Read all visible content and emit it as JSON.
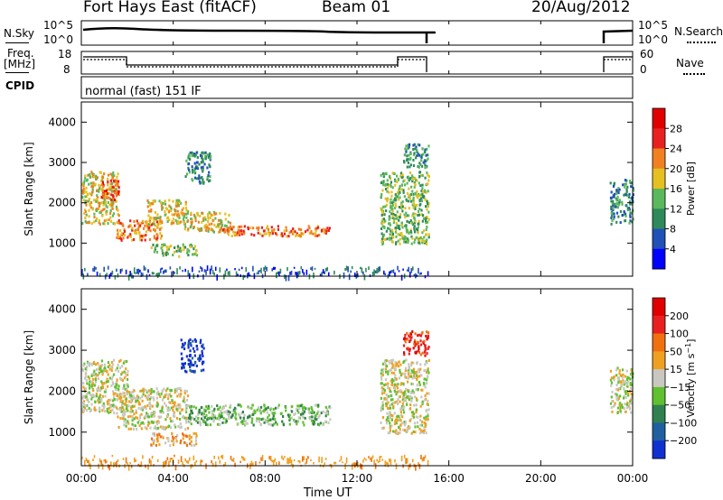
{
  "header": {
    "station": "Fort Hays East (fitACF)",
    "beam": "Beam 01",
    "date": "20/Aug/2012"
  },
  "noise_panel": {
    "left_label": "N.Sky",
    "right_label": "N.Search",
    "left_ticks": [
      "10^5",
      "10^0"
    ],
    "right_ticks": [
      "10^5",
      "10^0"
    ]
  },
  "freq_panel": {
    "left_label_1": "Freq.",
    "left_label_2": "[MHz]",
    "right_label": "Nave",
    "left_ticks": [
      "18",
      "8"
    ],
    "right_ticks": [
      "60",
      "0"
    ]
  },
  "cpid_panel": {
    "label": "CPID",
    "program": "normal (fast) 151 IF"
  },
  "x_axis": {
    "label": "Time UT",
    "ticks": [
      "00:00",
      "04:00",
      "08:00",
      "12:00",
      "16:00",
      "20:00",
      "00:00"
    ]
  },
  "chart_data": [
    {
      "type": "heatmap",
      "name": "power",
      "xlabel": "Time UT",
      "ylabel": "Slant Range [km]",
      "colorbar_label": "Power [dB]",
      "x_range_hours": [
        0,
        24
      ],
      "ylim_km": [
        180,
        4500
      ],
      "y_ticks": [
        1000,
        2000,
        3000,
        4000
      ],
      "colorbar_ticks": [
        "4",
        "8",
        "12",
        "16",
        "20",
        "24",
        "28"
      ],
      "colorbar_colors": [
        "#0000ff",
        "#2050b8",
        "#2e8a5a",
        "#5cb85c",
        "#e6c020",
        "#f08020",
        "#e82020",
        "#e00000"
      ],
      "regions": [
        {
          "t0": 0.0,
          "t1": 1.6,
          "r0": 1500,
          "r1": 2800,
          "level": 4
        },
        {
          "t0": 0.8,
          "t1": 1.6,
          "r0": 2100,
          "r1": 2600,
          "level": 6
        },
        {
          "t0": 1.5,
          "t1": 3.5,
          "r0": 1100,
          "r1": 1600,
          "level": 5
        },
        {
          "t0": 2.8,
          "t1": 4.6,
          "r0": 1500,
          "r1": 2100,
          "level": 4
        },
        {
          "t0": 3.0,
          "t1": 5.0,
          "r0": 700,
          "r1": 1000,
          "level": 3
        },
        {
          "t0": 4.5,
          "t1": 5.6,
          "r0": 2500,
          "r1": 3300,
          "level": 2
        },
        {
          "t0": 4.4,
          "t1": 6.5,
          "r0": 1300,
          "r1": 1800,
          "level": 4
        },
        {
          "t0": 6.0,
          "t1": 10.8,
          "r0": 1200,
          "r1": 1450,
          "level": 5
        },
        {
          "t0": 13.0,
          "t1": 15.1,
          "r0": 1000,
          "r1": 2800,
          "level": 3
        },
        {
          "t0": 14.0,
          "t1": 15.1,
          "r0": 2900,
          "r1": 3500,
          "level": 2
        },
        {
          "t0": 23.0,
          "t1": 24.0,
          "r0": 1500,
          "r1": 2600,
          "level": 2
        }
      ]
    },
    {
      "type": "heatmap",
      "name": "velocity",
      "xlabel": "Time UT",
      "ylabel": "Slant Range [km]",
      "colorbar_label": "Velocity [m s^-1]",
      "x_range_hours": [
        0,
        24
      ],
      "ylim_km": [
        180,
        4500
      ],
      "y_ticks": [
        1000,
        2000,
        3000,
        4000
      ],
      "colorbar_ticks": [
        "200",
        "100",
        "50",
        "15",
        "-15",
        "-50",
        "-100",
        "-200"
      ],
      "colorbar_colors": [
        "#1030d0",
        "#2060a0",
        "#308050",
        "#60c030",
        "#c8c8c0",
        "#f0a020",
        "#f07010",
        "#e82020",
        "#e00000"
      ],
      "regions": [
        {
          "t0": 0.0,
          "t1": 2.0,
          "r0": 1500,
          "r1": 2800,
          "level": 4
        },
        {
          "t0": 1.5,
          "t1": 4.6,
          "r0": 1100,
          "r1": 2100,
          "level": 4
        },
        {
          "t0": 3.0,
          "t1": 5.0,
          "r0": 700,
          "r1": 1000,
          "level": 5
        },
        {
          "t0": 4.3,
          "t1": 5.3,
          "r0": 2500,
          "r1": 3300,
          "level": 0
        },
        {
          "t0": 4.6,
          "t1": 10.8,
          "r0": 1200,
          "r1": 1700,
          "level": 3
        },
        {
          "t0": 13.0,
          "t1": 15.1,
          "r0": 1000,
          "r1": 2800,
          "level": 4
        },
        {
          "t0": 14.0,
          "t1": 15.1,
          "r0": 2900,
          "r1": 3500,
          "level": 7
        },
        {
          "t0": 23.0,
          "t1": 24.0,
          "r0": 1500,
          "r1": 2600,
          "level": 4
        }
      ]
    }
  ]
}
